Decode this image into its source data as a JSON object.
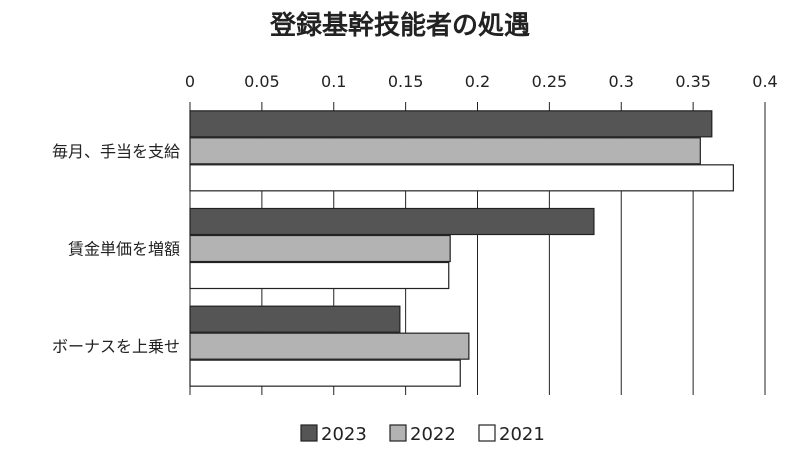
{
  "chart_data": {
    "type": "bar",
    "orientation": "horizontal",
    "title": "登録基幹技能者の処遇",
    "categories": [
      "毎月、手当を支給",
      "賃金単価を増額",
      "ボーナスを上乗せ"
    ],
    "series": [
      {
        "name": "2023",
        "values": [
          0.363,
          0.281,
          0.146
        ],
        "color": "#555555"
      },
      {
        "name": "2022",
        "values": [
          0.355,
          0.181,
          0.194
        ],
        "color": "#b3b3b3"
      },
      {
        "name": "2021",
        "values": [
          0.378,
          0.18,
          0.188
        ],
        "color": "#ffffff"
      }
    ],
    "xlim": [
      0,
      0.4
    ],
    "x_ticks": [
      "0",
      "0.05",
      "0.1",
      "0.15",
      "0.2",
      "0.25",
      "0.3",
      "0.35",
      "0.4"
    ],
    "x_axis_position": "top",
    "grid": "vertical",
    "legend_position": "bottom"
  }
}
